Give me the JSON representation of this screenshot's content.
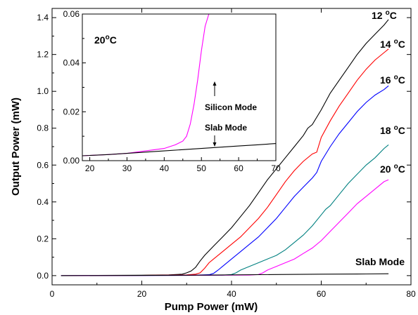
{
  "chart_data": [
    {
      "type": "line",
      "xlabel": "Pump Power (mW)",
      "ylabel": "Output Power (mW)",
      "xlim": [
        0,
        80
      ],
      "ylim": [
        -0.05,
        1.45
      ],
      "xticks": [
        "0",
        "20",
        "40",
        "60",
        "80"
      ],
      "yticks": [
        "0.0",
        "0.2",
        "0.4",
        "0.6",
        "0.8",
        "1.0",
        "1.2",
        "1.4"
      ],
      "grid": false,
      "series": [
        {
          "name": "12 °C",
          "label_main": "12",
          "label_sup": "o",
          "label_unit": "C",
          "color": "#000000",
          "points": [
            [
              2,
              0
            ],
            [
              10,
              0.001
            ],
            [
              20,
              0.002
            ],
            [
              26,
              0.004
            ],
            [
              29,
              0.008
            ],
            [
              30,
              0.015
            ],
            [
              31,
              0.025
            ],
            [
              32,
              0.045
            ],
            [
              33,
              0.08
            ],
            [
              34,
              0.11
            ],
            [
              36,
              0.16
            ],
            [
              38,
              0.21
            ],
            [
              40,
              0.26
            ],
            [
              42,
              0.32
            ],
            [
              44,
              0.38
            ],
            [
              46,
              0.45
            ],
            [
              48,
              0.52
            ],
            [
              50,
              0.58
            ],
            [
              52,
              0.64
            ],
            [
              54,
              0.7
            ],
            [
              56,
              0.76
            ],
            [
              57,
              0.8
            ],
            [
              58,
              0.82
            ],
            [
              60,
              0.9
            ],
            [
              62,
              0.99
            ],
            [
              64,
              1.06
            ],
            [
              66,
              1.13
            ],
            [
              68,
              1.2
            ],
            [
              70,
              1.26
            ],
            [
              72,
              1.31
            ],
            [
              74,
              1.36
            ],
            [
              75,
              1.39
            ]
          ]
        },
        {
          "name": "14 °C",
          "label_main": "14",
          "label_sup": "o",
          "label_unit": "C",
          "color": "#ff0000",
          "points": [
            [
              2,
              0
            ],
            [
              20,
              0.001
            ],
            [
              30,
              0.004
            ],
            [
              32,
              0.008
            ],
            [
              33,
              0.015
            ],
            [
              34,
              0.04
            ],
            [
              35,
              0.07
            ],
            [
              36,
              0.09
            ],
            [
              38,
              0.13
            ],
            [
              40,
              0.17
            ],
            [
              42,
              0.21
            ],
            [
              44,
              0.26
            ],
            [
              46,
              0.31
            ],
            [
              48,
              0.37
            ],
            [
              50,
              0.44
            ],
            [
              52,
              0.51
            ],
            [
              54,
              0.57
            ],
            [
              56,
              0.62
            ],
            [
              58,
              0.66
            ],
            [
              59,
              0.67
            ],
            [
              60,
              0.75
            ],
            [
              62,
              0.84
            ],
            [
              64,
              0.92
            ],
            [
              66,
              0.99
            ],
            [
              68,
              1.06
            ],
            [
              70,
              1.12
            ],
            [
              72,
              1.17
            ],
            [
              74,
              1.21
            ],
            [
              75,
              1.23
            ]
          ]
        },
        {
          "name": "16 °C",
          "label_main": "16",
          "label_sup": "o",
          "label_unit": "C",
          "color": "#0000ff",
          "points": [
            [
              2,
              0
            ],
            [
              30,
              0.001
            ],
            [
              35,
              0.005
            ],
            [
              36,
              0.012
            ],
            [
              37,
              0.03
            ],
            [
              38,
              0.05
            ],
            [
              40,
              0.09
            ],
            [
              42,
              0.13
            ],
            [
              44,
              0.17
            ],
            [
              46,
              0.21
            ],
            [
              48,
              0.26
            ],
            [
              50,
              0.31
            ],
            [
              52,
              0.37
            ],
            [
              54,
              0.43
            ],
            [
              56,
              0.48
            ],
            [
              58,
              0.53
            ],
            [
              59,
              0.56
            ],
            [
              60,
              0.62
            ],
            [
              62,
              0.7
            ],
            [
              64,
              0.77
            ],
            [
              66,
              0.83
            ],
            [
              68,
              0.89
            ],
            [
              70,
              0.94
            ],
            [
              72,
              0.98
            ],
            [
              74,
              1.01
            ],
            [
              75,
              1.03
            ]
          ]
        },
        {
          "name": "18 °C",
          "label_main": "18",
          "label_sup": "o",
          "label_unit": "C",
          "color": "#008080",
          "points": [
            [
              2,
              0
            ],
            [
              38,
              0.002
            ],
            [
              40,
              0.006
            ],
            [
              41,
              0.015
            ],
            [
              42,
              0.03
            ],
            [
              44,
              0.05
            ],
            [
              46,
              0.07
            ],
            [
              48,
              0.09
            ],
            [
              50,
              0.11
            ],
            [
              52,
              0.14
            ],
            [
              54,
              0.18
            ],
            [
              56,
              0.22
            ],
            [
              58,
              0.27
            ],
            [
              60,
              0.33
            ],
            [
              61,
              0.36
            ],
            [
              62,
              0.38
            ],
            [
              64,
              0.44
            ],
            [
              66,
              0.5
            ],
            [
              68,
              0.55
            ],
            [
              70,
              0.6
            ],
            [
              72,
              0.64
            ],
            [
              74,
              0.69
            ],
            [
              75,
              0.71
            ]
          ]
        },
        {
          "name": "20 °C",
          "label_main": "20",
          "label_sup": "o",
          "label_unit": "C",
          "color": "#ff00ff",
          "points": [
            [
              2,
              0
            ],
            [
              44,
              0.003
            ],
            [
              46,
              0.006
            ],
            [
              47,
              0.015
            ],
            [
              48,
              0.03
            ],
            [
              50,
              0.05
            ],
            [
              52,
              0.07
            ],
            [
              54,
              0.09
            ],
            [
              56,
              0.12
            ],
            [
              58,
              0.15
            ],
            [
              60,
              0.19
            ],
            [
              62,
              0.24
            ],
            [
              64,
              0.29
            ],
            [
              66,
              0.34
            ],
            [
              68,
              0.39
            ],
            [
              70,
              0.43
            ],
            [
              72,
              0.47
            ],
            [
              74,
              0.51
            ],
            [
              75,
              0.52
            ]
          ]
        },
        {
          "name": "Slab Mode",
          "label_main": "Slab Mode",
          "color": "#000000",
          "points": [
            [
              2,
              0
            ],
            [
              30,
              0.002
            ],
            [
              40,
              0.004
            ],
            [
              50,
              0.006
            ],
            [
              60,
              0.008
            ],
            [
              70,
              0.009
            ],
            [
              75,
              0.01
            ]
          ]
        }
      ]
    },
    {
      "type": "line",
      "title": "20 °C",
      "title_main": "20",
      "title_sup": "o",
      "title_unit": "C",
      "xlim": [
        18,
        70
      ],
      "ylim": [
        0,
        0.06
      ],
      "xticks": [
        "20",
        "30",
        "40",
        "50",
        "60",
        "70"
      ],
      "yticks": [
        "0.00",
        "0.02",
        "0.04",
        "0.06"
      ],
      "annotations": [
        "Silicon Mode",
        "Slab Mode"
      ],
      "series": [
        {
          "name": "Silicon Mode",
          "color": "#ff00ff",
          "points": [
            [
              18,
              0.002
            ],
            [
              25,
              0.0025
            ],
            [
              30,
              0.003
            ],
            [
              35,
              0.004
            ],
            [
              40,
              0.005
            ],
            [
              43,
              0.0065
            ],
            [
              45,
              0.008
            ],
            [
              46,
              0.01
            ],
            [
              47,
              0.015
            ],
            [
              48,
              0.023
            ],
            [
              49,
              0.033
            ],
            [
              50,
              0.045
            ],
            [
              51,
              0.055
            ],
            [
              52,
              0.06
            ]
          ]
        },
        {
          "name": "Slab Mode",
          "color": "#000000",
          "points": [
            [
              18,
              0.002
            ],
            [
              25,
              0.0025
            ],
            [
              30,
              0.003
            ],
            [
              35,
              0.0035
            ],
            [
              40,
              0.004
            ],
            [
              45,
              0.0045
            ],
            [
              50,
              0.005
            ],
            [
              55,
              0.0055
            ],
            [
              60,
              0.006
            ],
            [
              65,
              0.0065
            ],
            [
              70,
              0.007
            ]
          ]
        }
      ]
    }
  ]
}
